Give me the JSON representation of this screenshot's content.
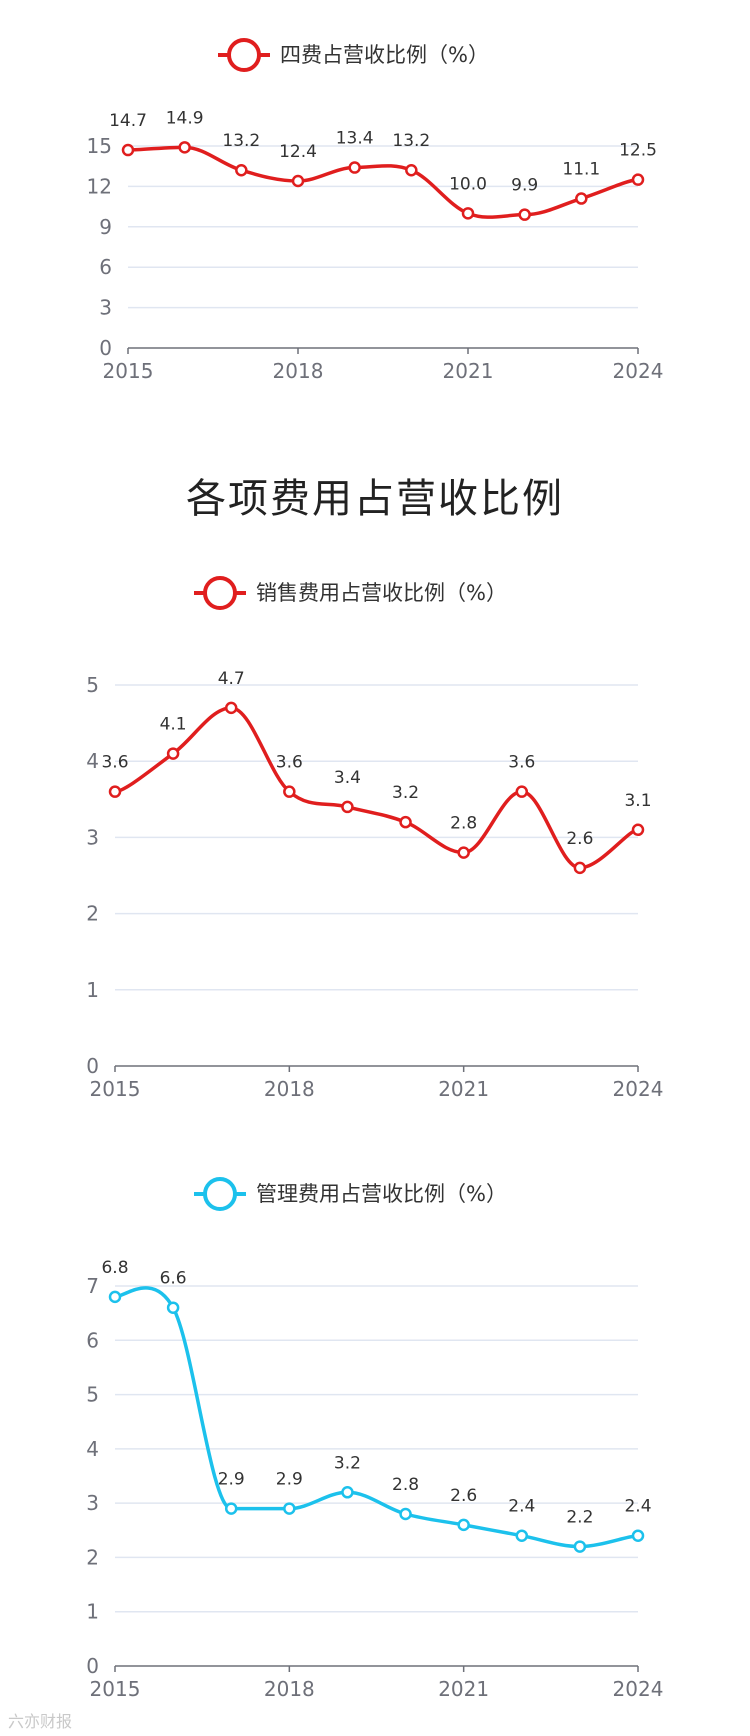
{
  "section_title": "各项费用占营收比例",
  "watermark": "六亦财报",
  "chart_data": [
    {
      "type": "line",
      "legend": "四费占营收比例（%）",
      "color": "#e01e1e",
      "x": [
        2015,
        2016,
        2017,
        2018,
        2019,
        2020,
        2021,
        2022,
        2023,
        2024
      ],
      "values": [
        14.7,
        14.9,
        13.2,
        12.4,
        13.4,
        13.2,
        10.0,
        9.9,
        11.1,
        12.5
      ],
      "value_labels": [
        "14.7",
        "14.9",
        "13.2",
        "12.4",
        "13.4",
        "13.2",
        "10.0",
        "9.9",
        "11.1",
        "12.5"
      ],
      "x_ticks": [
        "2015",
        "2018",
        "2021",
        "2024"
      ],
      "y_ticks": [
        "0",
        "3",
        "6",
        "9",
        "12",
        "15"
      ],
      "ylim": [
        0,
        15
      ],
      "grid": true
    },
    {
      "type": "line",
      "legend": "销售费用占营收比例（%）",
      "color": "#e01e1e",
      "x": [
        2015,
        2016,
        2017,
        2018,
        2019,
        2020,
        2021,
        2022,
        2023,
        2024
      ],
      "values": [
        3.6,
        4.1,
        4.7,
        3.6,
        3.4,
        3.2,
        2.8,
        3.6,
        2.6,
        3.1
      ],
      "value_labels": [
        "3.6",
        "4.1",
        "4.7",
        "3.6",
        "3.4",
        "3.2",
        "2.8",
        "3.6",
        "2.6",
        "3.1"
      ],
      "x_ticks": [
        "2015",
        "2018",
        "2021",
        "2024"
      ],
      "y_ticks": [
        "0",
        "1",
        "2",
        "3",
        "4",
        "5"
      ],
      "ylim": [
        0,
        5
      ],
      "grid": true
    },
    {
      "type": "line",
      "legend": "管理费用占营收比例（%）",
      "color": "#1cc1ec",
      "x": [
        2015,
        2016,
        2017,
        2018,
        2019,
        2020,
        2021,
        2022,
        2023,
        2024
      ],
      "values": [
        6.8,
        6.6,
        2.9,
        2.9,
        3.2,
        2.8,
        2.6,
        2.4,
        2.2,
        2.4
      ],
      "value_labels": [
        "6.8",
        "6.6",
        "2.9",
        "2.9",
        "3.2",
        "2.8",
        "2.6",
        "2.4",
        "2.2",
        "2.4"
      ],
      "x_ticks": [
        "2015",
        "2018",
        "2021",
        "2024"
      ],
      "y_ticks": [
        "0",
        "1",
        "2",
        "3",
        "4",
        "5",
        "6",
        "7"
      ],
      "ylim": [
        0,
        7
      ],
      "grid": true
    }
  ]
}
